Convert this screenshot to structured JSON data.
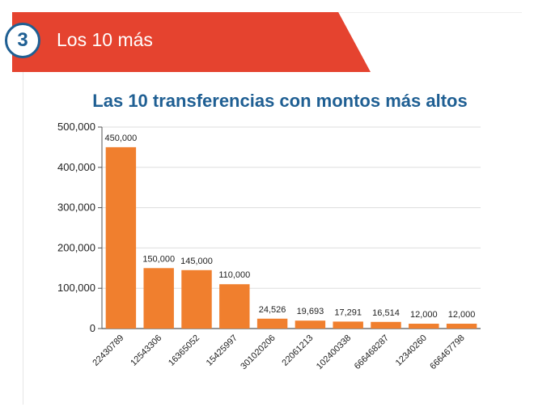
{
  "header": {
    "step_number": "3",
    "title": "Los 10 más"
  },
  "colors": {
    "banner": "#e5432f",
    "badge": "#1f5f93",
    "bar": "#f07f2e",
    "title": "#1f5f93"
  },
  "chart_data": {
    "type": "bar",
    "title": "Las 10 transferencias con montos más altos",
    "xlabel": "",
    "ylabel": "",
    "categories": [
      "22430789",
      "12543306",
      "16365052",
      "15425997",
      "301020206",
      "22061213",
      "102400338",
      "666468287",
      "12340260",
      "666467798"
    ],
    "values": [
      450000,
      150000,
      145000,
      110000,
      24526,
      19693,
      17291,
      16514,
      12000,
      12000
    ],
    "data_labels": [
      "450,000",
      "150,000",
      "145,000",
      "110,000",
      "24,526",
      "19,693",
      "17,291",
      "16,514",
      "12,000",
      "12,000"
    ],
    "yticks": [
      0,
      100000,
      200000,
      300000,
      400000,
      500000
    ],
    "ytick_labels": [
      "0",
      "100,000",
      "200,000",
      "300,000",
      "400,000",
      "500,000"
    ],
    "ylim": [
      0,
      500000
    ],
    "grid": true,
    "legend": "none"
  }
}
